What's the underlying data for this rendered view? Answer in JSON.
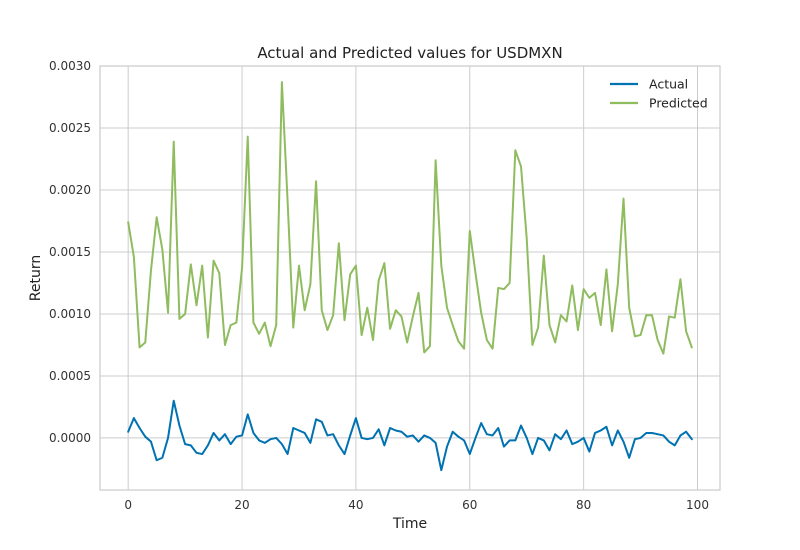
{
  "chart_data": {
    "type": "line",
    "title": "Actual and Predicted values for USDMXN",
    "xlabel": "Time",
    "ylabel": "Return",
    "xlim": [
      -4.95,
      103.95
    ],
    "ylim": [
      -0.00042,
      0.003
    ],
    "xticks": [
      0,
      20,
      40,
      60,
      80,
      100
    ],
    "xtick_labels": [
      "0",
      "20",
      "40",
      "60",
      "80",
      "100"
    ],
    "yticks": [
      0,
      0.0005,
      0.001,
      0.0015,
      0.002,
      0.0025,
      0.003
    ],
    "ytick_labels": [
      "0.0000",
      "0.0005",
      "0.0010",
      "0.0015",
      "0.0020",
      "0.0025",
      "0.0030"
    ],
    "grid": true,
    "legend_position": "top-right",
    "x": [
      0,
      1,
      2,
      3,
      4,
      5,
      6,
      7,
      8,
      9,
      10,
      11,
      12,
      13,
      14,
      15,
      16,
      17,
      18,
      19,
      20,
      21,
      22,
      23,
      24,
      25,
      26,
      27,
      28,
      29,
      30,
      31,
      32,
      33,
      34,
      35,
      36,
      37,
      38,
      39,
      40,
      41,
      42,
      43,
      44,
      45,
      46,
      47,
      48,
      49,
      50,
      51,
      52,
      53,
      54,
      55,
      56,
      57,
      58,
      59,
      60,
      61,
      62,
      63,
      64,
      65,
      66,
      67,
      68,
      69,
      70,
      71,
      72,
      73,
      74,
      75,
      76,
      77,
      78,
      79,
      80,
      81,
      82,
      83,
      84,
      85,
      86,
      87,
      88,
      89,
      90,
      91,
      92,
      93,
      94,
      95,
      96,
      97,
      98,
      99
    ],
    "series": [
      {
        "name": "Actual",
        "color": "#0072b2",
        "values": [
          5e-05,
          0.00016,
          8e-05,
          1e-05,
          -3e-05,
          -0.00018,
          -0.00016,
          0.0,
          0.0003,
          0.0001,
          -5e-05,
          -6e-05,
          -0.00012,
          -0.00013,
          -6e-05,
          4e-05,
          -2e-05,
          3e-05,
          -5e-05,
          1e-05,
          2e-05,
          0.00019,
          4e-05,
          -2e-05,
          -4e-05,
          -1e-05,
          0.0,
          -5e-05,
          -0.00013,
          8e-05,
          6e-05,
          4e-05,
          -4e-05,
          0.00015,
          0.00013,
          2e-05,
          3e-05,
          -6e-05,
          -0.00013,
          2e-05,
          0.00016,
          0.0,
          -1e-05,
          0.0,
          7e-05,
          -6e-05,
          8e-05,
          6e-05,
          5e-05,
          1e-05,
          2e-05,
          -3e-05,
          2e-05,
          0.0,
          -4e-05,
          -0.00026,
          -7e-05,
          5e-05,
          1e-05,
          -2e-05,
          -0.00013,
          0.0,
          0.00012,
          3e-05,
          2e-05,
          8e-05,
          -7e-05,
          -2e-05,
          -2e-05,
          0.0001,
          0.0,
          -0.00013,
          0.0,
          -2e-05,
          -0.0001,
          3e-05,
          -1e-05,
          6e-05,
          -5e-05,
          -3e-05,
          0.0,
          -0.00011,
          4e-05,
          6e-05,
          9e-05,
          -6e-05,
          6e-05,
          -3e-05,
          -0.00016,
          -1e-05,
          0.0,
          4e-05,
          4e-05,
          3e-05,
          2e-05,
          -3e-05,
          -6e-05,
          2e-05,
          5e-05,
          -1e-05
        ]
      },
      {
        "name": "Predicted",
        "color": "#8fbc5f",
        "values": [
          0.00174,
          0.00146,
          0.00073,
          0.00077,
          0.00135,
          0.00178,
          0.00152,
          0.00101,
          0.00239,
          0.00096,
          0.001,
          0.0014,
          0.00107,
          0.00139,
          0.00081,
          0.00143,
          0.00133,
          0.00075,
          0.00091,
          0.00093,
          0.00137,
          0.00243,
          0.00093,
          0.00084,
          0.00093,
          0.00074,
          0.00091,
          0.00287,
          0.00191,
          0.00089,
          0.00139,
          0.00103,
          0.00124,
          0.00207,
          0.00103,
          0.00087,
          0.00099,
          0.00157,
          0.00095,
          0.00132,
          0.00139,
          0.00083,
          0.00105,
          0.00079,
          0.00127,
          0.00141,
          0.00088,
          0.00103,
          0.00098,
          0.00077,
          0.00098,
          0.00117,
          0.00069,
          0.00074,
          0.00224,
          0.00139,
          0.00105,
          0.00091,
          0.00078,
          0.00072,
          0.00167,
          0.00133,
          0.00101,
          0.00079,
          0.00072,
          0.00121,
          0.0012,
          0.00125,
          0.00232,
          0.00219,
          0.00161,
          0.00075,
          0.00089,
          0.00147,
          0.00091,
          0.00077,
          0.00099,
          0.00094,
          0.00123,
          0.00087,
          0.0012,
          0.00113,
          0.00117,
          0.00091,
          0.00136,
          0.00086,
          0.00124,
          0.00193,
          0.00105,
          0.00082,
          0.00083,
          0.00099,
          0.00099,
          0.00079,
          0.00068,
          0.00098,
          0.00097,
          0.00128,
          0.00086,
          0.00073
        ]
      }
    ]
  },
  "colors": {
    "background": "#ffffff",
    "plot_background": "#ffffff",
    "grid": "#cccccc",
    "frame": "#cccccc"
  }
}
